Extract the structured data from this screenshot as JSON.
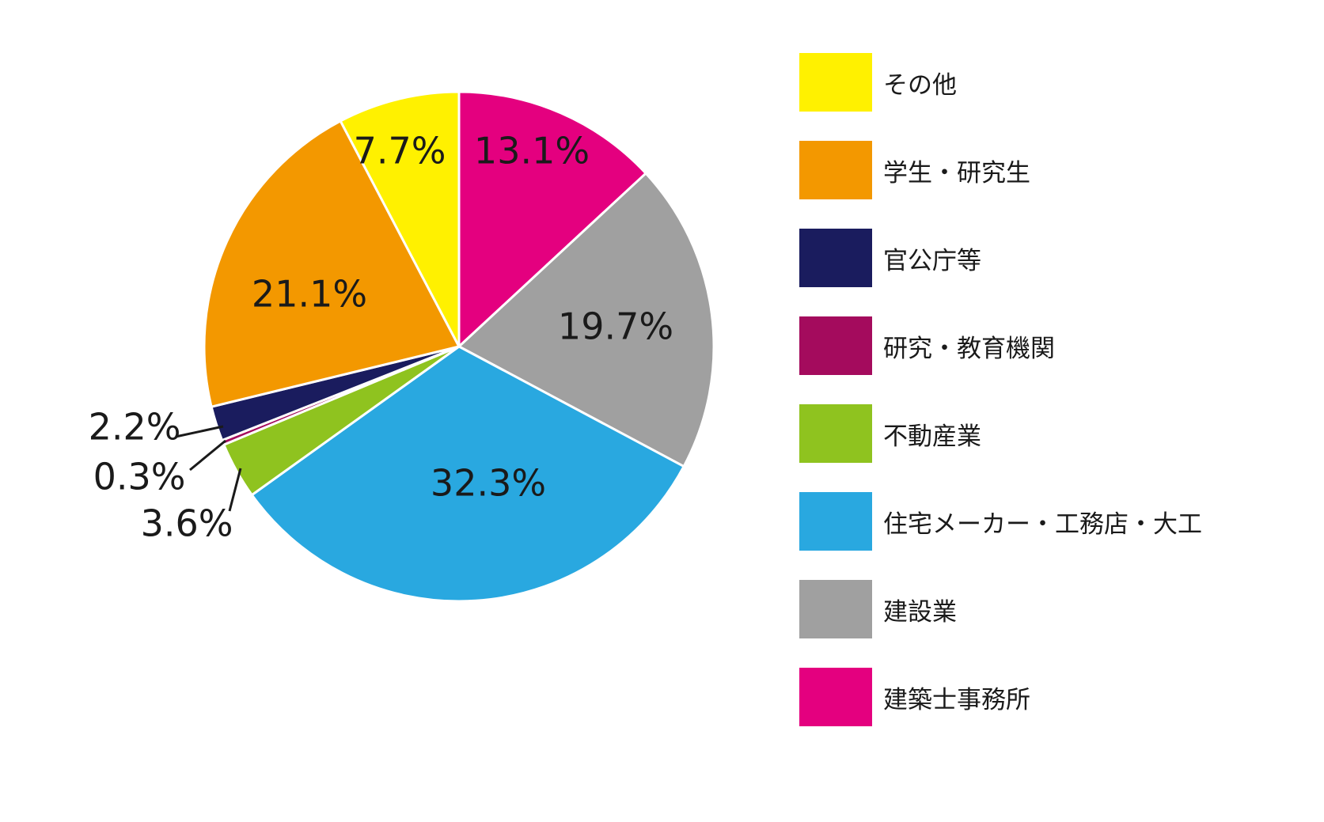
{
  "chart_data": {
    "type": "pie",
    "title": "",
    "start_angle_deg": 0,
    "direction": "clockwise",
    "legend_position": "right",
    "slices": [
      {
        "label": "建築士事務所",
        "value": 13.1,
        "display": "13.1%",
        "color": "#E4007F"
      },
      {
        "label": "建設業",
        "value": 19.7,
        "display": "19.7%",
        "color": "#A0A0A0"
      },
      {
        "label": "住宅メーカー・工務店・大工",
        "value": 32.3,
        "display": "32.3%",
        "color": "#29A8E0"
      },
      {
        "label": "不動産業",
        "value": 3.6,
        "display": "3.6%",
        "color": "#8FC31F"
      },
      {
        "label": "研究・教育機関",
        "value": 0.3,
        "display": "0.3%",
        "color": "#A40B5D"
      },
      {
        "label": "官公庁等",
        "value": 2.2,
        "display": "2.2%",
        "color": "#1A1C5E"
      },
      {
        "label": "学生・研究生",
        "value": 21.1,
        "display": "21.1%",
        "color": "#F39800"
      },
      {
        "label": "その他",
        "value": 7.7,
        "display": "7.7%",
        "color": "#FFF100"
      }
    ],
    "legend": [
      {
        "label": "その他",
        "color": "#FFF100"
      },
      {
        "label": "学生・研究生",
        "color": "#F39800"
      },
      {
        "label": "官公庁等",
        "color": "#1A1C5E"
      },
      {
        "label": "研究・教育機関",
        "color": "#A40B5D"
      },
      {
        "label": "不動産業",
        "color": "#8FC31F"
      },
      {
        "label": "住宅メーカー・工務店・大工",
        "color": "#29A8E0"
      },
      {
        "label": "建設業",
        "color": "#A0A0A0"
      },
      {
        "label": "建築士事務所",
        "color": "#E4007F"
      }
    ]
  }
}
